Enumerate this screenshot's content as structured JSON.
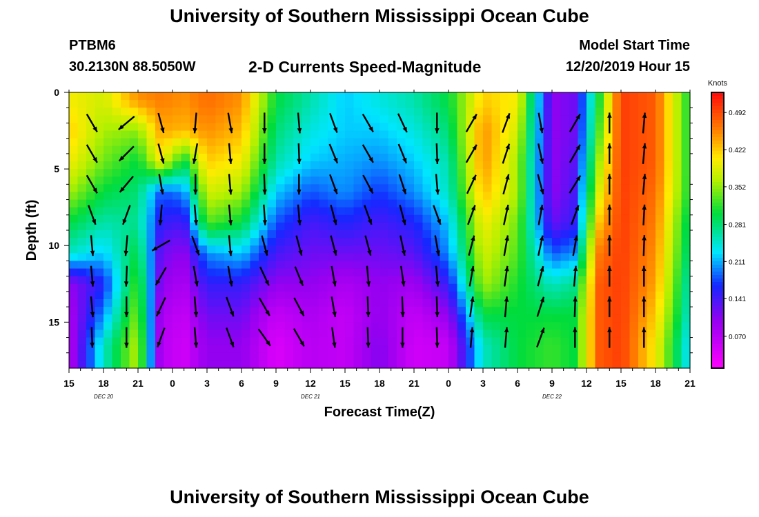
{
  "title": "University of Southern Mississippi Ocean Cube",
  "footer_title": "University of Southern Mississippi Ocean Cube",
  "station": {
    "id": "PTBM6",
    "location": "30.2130N 88.5050W"
  },
  "subtitle": "2-D Currents Speed-Magnitude",
  "model_start": {
    "label": "Model Start Time",
    "value": "12/20/2019 Hour 15"
  },
  "chart_data": {
    "type": "heatmap",
    "xlabel": "Forecast Time(Z)",
    "ylabel": "Depth (ft)",
    "x_ticks": [
      "15",
      "18",
      "21",
      "0",
      "3",
      "6",
      "9",
      "12",
      "15",
      "18",
      "21",
      "0",
      "3",
      "6",
      "9",
      "12",
      "15",
      "18",
      "21"
    ],
    "date_labels": [
      {
        "text": "DEC  20",
        "tick_index": 1
      },
      {
        "text": "DEC  21",
        "tick_index": 7
      },
      {
        "text": "DEC  22",
        "tick_index": 14
      }
    ],
    "y_ticks": [
      0,
      5,
      10,
      15
    ],
    "ylim": [
      0,
      18
    ],
    "x_hours_total": 54,
    "colorbar": {
      "unit": "Knots",
      "tick_labels": [
        "0.492",
        "0.422",
        "0.352",
        "0.281",
        "0.211",
        "0.141",
        "0.070"
      ],
      "range": [
        0.01,
        0.53
      ]
    },
    "depth_levels_ft": [
      0.5,
      2.5,
      4.5,
      6.5,
      8.5,
      10.5,
      12.5,
      14.5,
      16.5
    ],
    "speed_profile": [
      {
        "hour": 0,
        "speeds": [
          0.4,
          0.42,
          0.4,
          0.36,
          0.3,
          0.25,
          0.1,
          0.08,
          0.07
        ]
      },
      {
        "hour": 3,
        "speeds": [
          0.38,
          0.36,
          0.34,
          0.3,
          0.26,
          0.22,
          0.16,
          0.2,
          0.25
        ]
      },
      {
        "hour": 6,
        "speeds": [
          0.45,
          0.35,
          0.3,
          0.28,
          0.27,
          0.3,
          0.33,
          0.35,
          0.37
        ]
      },
      {
        "hour": 8,
        "speeds": [
          0.46,
          0.44,
          0.4,
          0.18,
          0.15,
          0.12,
          0.1,
          0.08,
          0.07
        ]
      },
      {
        "hour": 10,
        "speeds": [
          0.45,
          0.43,
          0.3,
          0.2,
          0.14,
          0.1,
          0.08,
          0.06,
          0.05
        ]
      },
      {
        "hour": 12,
        "speeds": [
          0.47,
          0.45,
          0.42,
          0.38,
          0.33,
          0.2,
          0.15,
          0.12,
          0.1
        ]
      },
      {
        "hour": 15,
        "speeds": [
          0.45,
          0.43,
          0.4,
          0.36,
          0.3,
          0.22,
          0.15,
          0.12,
          0.1
        ]
      },
      {
        "hour": 18,
        "speeds": [
          0.3,
          0.28,
          0.26,
          0.22,
          0.18,
          0.14,
          0.1,
          0.06,
          0.04
        ]
      },
      {
        "hour": 21,
        "speeds": [
          0.26,
          0.24,
          0.22,
          0.18,
          0.14,
          0.12,
          0.1,
          0.08,
          0.07
        ]
      },
      {
        "hour": 24,
        "speeds": [
          0.22,
          0.22,
          0.21,
          0.2,
          0.16,
          0.12,
          0.08,
          0.06,
          0.06
        ]
      },
      {
        "hour": 27,
        "speeds": [
          0.24,
          0.22,
          0.2,
          0.17,
          0.14,
          0.12,
          0.1,
          0.1,
          0.11
        ]
      },
      {
        "hour": 30,
        "speeds": [
          0.26,
          0.24,
          0.22,
          0.2,
          0.16,
          0.13,
          0.09,
          0.06,
          0.05
        ]
      },
      {
        "hour": 33,
        "speeds": [
          0.3,
          0.28,
          0.26,
          0.25,
          0.22,
          0.2,
          0.15,
          0.1,
          0.06
        ]
      },
      {
        "hour": 36,
        "speeds": [
          0.42,
          0.45,
          0.45,
          0.43,
          0.4,
          0.38,
          0.36,
          0.3,
          0.25
        ]
      },
      {
        "hour": 39,
        "speeds": [
          0.4,
          0.38,
          0.36,
          0.36,
          0.34,
          0.33,
          0.31,
          0.3,
          0.3
        ]
      },
      {
        "hour": 42,
        "speeds": [
          0.1,
          0.1,
          0.1,
          0.1,
          0.12,
          0.18,
          0.25,
          0.3,
          0.32
        ]
      },
      {
        "hour": 44,
        "speeds": [
          0.12,
          0.12,
          0.13,
          0.14,
          0.15,
          0.2,
          0.27,
          0.3,
          0.3
        ]
      },
      {
        "hour": 46,
        "speeds": [
          0.3,
          0.32,
          0.35,
          0.38,
          0.42,
          0.46,
          0.48,
          0.48,
          0.48
        ]
      },
      {
        "hour": 48,
        "speeds": [
          0.5,
          0.5,
          0.5,
          0.5,
          0.5,
          0.5,
          0.5,
          0.5,
          0.5
        ]
      },
      {
        "hour": 51,
        "speeds": [
          0.48,
          0.48,
          0.48,
          0.47,
          0.46,
          0.45,
          0.44,
          0.42,
          0.4
        ]
      },
      {
        "hour": 54,
        "speeds": [
          0.3,
          0.3,
          0.3,
          0.3,
          0.28,
          0.27,
          0.25,
          0.24,
          0.22
        ]
      }
    ],
    "vector_hours": [
      2,
      5,
      8,
      11,
      14,
      17,
      20,
      23,
      26,
      29,
      32,
      35,
      38,
      41,
      44,
      47,
      50
    ],
    "vector_depths_ft": [
      2,
      4,
      6,
      8,
      10,
      12,
      14,
      16
    ],
    "vector_direction_deg": [
      [
        150,
        150,
        150,
        160,
        175,
        175,
        175,
        178
      ],
      [
        230,
        225,
        220,
        200,
        185,
        182,
        180,
        180
      ],
      [
        165,
        165,
        170,
        185,
        240,
        210,
        205,
        200
      ],
      [
        185,
        190,
        180,
        175,
        160,
        170,
        175,
        175
      ],
      [
        170,
        175,
        175,
        175,
        175,
        170,
        160,
        160
      ],
      [
        180,
        180,
        178,
        176,
        165,
        155,
        150,
        145
      ],
      [
        175,
        178,
        180,
        175,
        165,
        158,
        152,
        150
      ],
      [
        160,
        158,
        160,
        165,
        165,
        170,
        170,
        172
      ],
      [
        150,
        150,
        152,
        160,
        165,
        175,
        178,
        178
      ],
      [
        155,
        158,
        162,
        165,
        168,
        172,
        178,
        180
      ],
      [
        180,
        178,
        175,
        160,
        170,
        175,
        178,
        178
      ],
      [
        30,
        30,
        25,
        20,
        15,
        10,
        8,
        5
      ],
      [
        20,
        18,
        15,
        12,
        10,
        8,
        5,
        5
      ],
      [
        170,
        168,
        165,
        10,
        12,
        15,
        18,
        20
      ],
      [
        30,
        30,
        32,
        20,
        10,
        5,
        2,
        0
      ],
      [
        0,
        0,
        0,
        0,
        0,
        0,
        0,
        0
      ],
      [
        5,
        5,
        5,
        3,
        2,
        0,
        0,
        0
      ]
    ]
  }
}
